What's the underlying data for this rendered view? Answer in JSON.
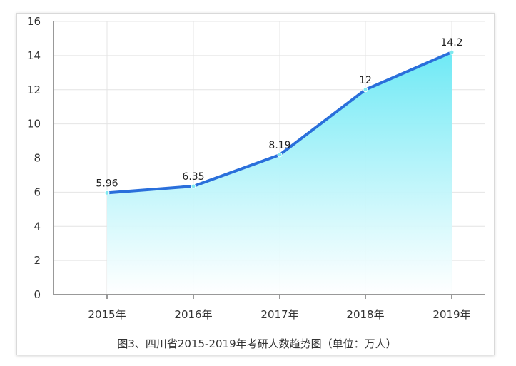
{
  "chart_data": {
    "type": "area",
    "title": "",
    "caption": "图3、四川省2015-2019年考研人数趋势图（单位：万人）",
    "xlabel": "",
    "ylabel": "",
    "categories": [
      "2015年",
      "2016年",
      "2017年",
      "2018年",
      "2019年"
    ],
    "values": [
      5.96,
      6.35,
      8.19,
      12,
      14.2
    ],
    "data_labels": [
      "5.96",
      "6.35",
      "8.19",
      "12",
      "14.2"
    ],
    "ylim": [
      0,
      16
    ],
    "yticks": [
      "0",
      "2",
      "4",
      "6",
      "8",
      "10",
      "12",
      "14",
      "16"
    ],
    "grid": "horizontal-and-vertical",
    "legend": "none",
    "colors": {
      "line": "#2a6fdb",
      "fill_top": "#6ee9f5",
      "fill_bottom": "#ffffff",
      "marker": "#7fe8ef",
      "grid": "#e4e4e4",
      "axis": "#333333"
    }
  }
}
